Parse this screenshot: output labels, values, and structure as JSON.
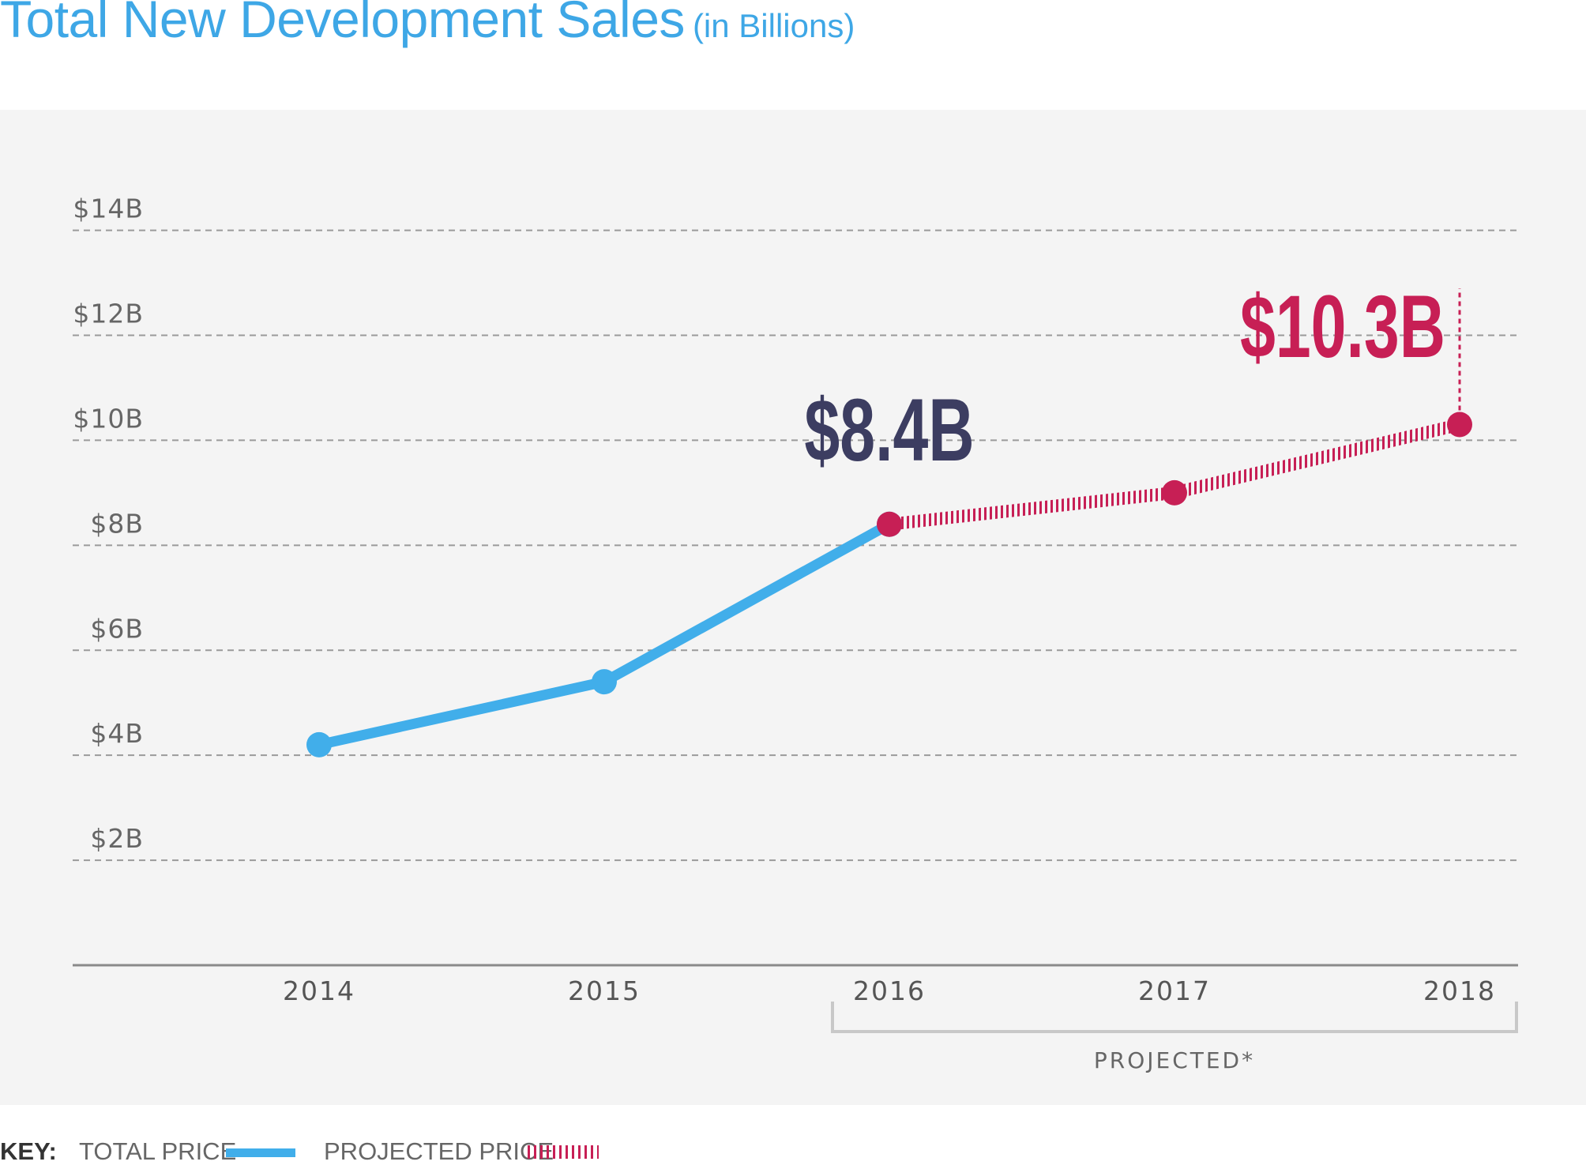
{
  "title": {
    "main": "Total New Development Sales",
    "sub": "(in Billions)"
  },
  "chart_data": {
    "type": "line",
    "title": "Total New Development Sales (in Billions)",
    "categories": [
      "2014",
      "2015",
      "2016",
      "2017",
      "2018"
    ],
    "yticks": [
      {
        "value": 2,
        "label": "$2B"
      },
      {
        "value": 4,
        "label": "$4B"
      },
      {
        "value": 6,
        "label": "$6B"
      },
      {
        "value": 8,
        "label": "$8B"
      },
      {
        "value": 10,
        "label": "$10B"
      },
      {
        "value": 12,
        "label": "$12B"
      },
      {
        "value": 14,
        "label": "$14B"
      }
    ],
    "ylim": [
      0,
      14.4
    ],
    "series": [
      {
        "name": "TOTAL PRICE",
        "x": [
          "2014",
          "2015",
          "2016"
        ],
        "values": [
          4.2,
          5.4,
          8.4
        ],
        "color": "#41aeea",
        "style": "solid"
      },
      {
        "name": "PROJECTED PRICE",
        "x": [
          "2016",
          "2017",
          "2018"
        ],
        "values": [
          8.4,
          9.0,
          10.3
        ],
        "color": "#c71f55",
        "style": "hatched"
      }
    ],
    "annotations": [
      {
        "x": "2016",
        "value": 8.4,
        "text": "$8.4B",
        "color": "#3c3d61"
      },
      {
        "x": "2018",
        "value": 10.3,
        "text": "$10.3B",
        "color": "#c71f55"
      }
    ],
    "bracket": {
      "from": "2016",
      "to": "2018",
      "label": "PROJECTED*"
    },
    "grid": true
  },
  "key": {
    "label": "KEY:",
    "items": [
      {
        "text": "TOTAL PRICE",
        "color": "#41aeea"
      },
      {
        "text": "PROJECTED PRICE",
        "color": "#c71f55"
      }
    ]
  }
}
